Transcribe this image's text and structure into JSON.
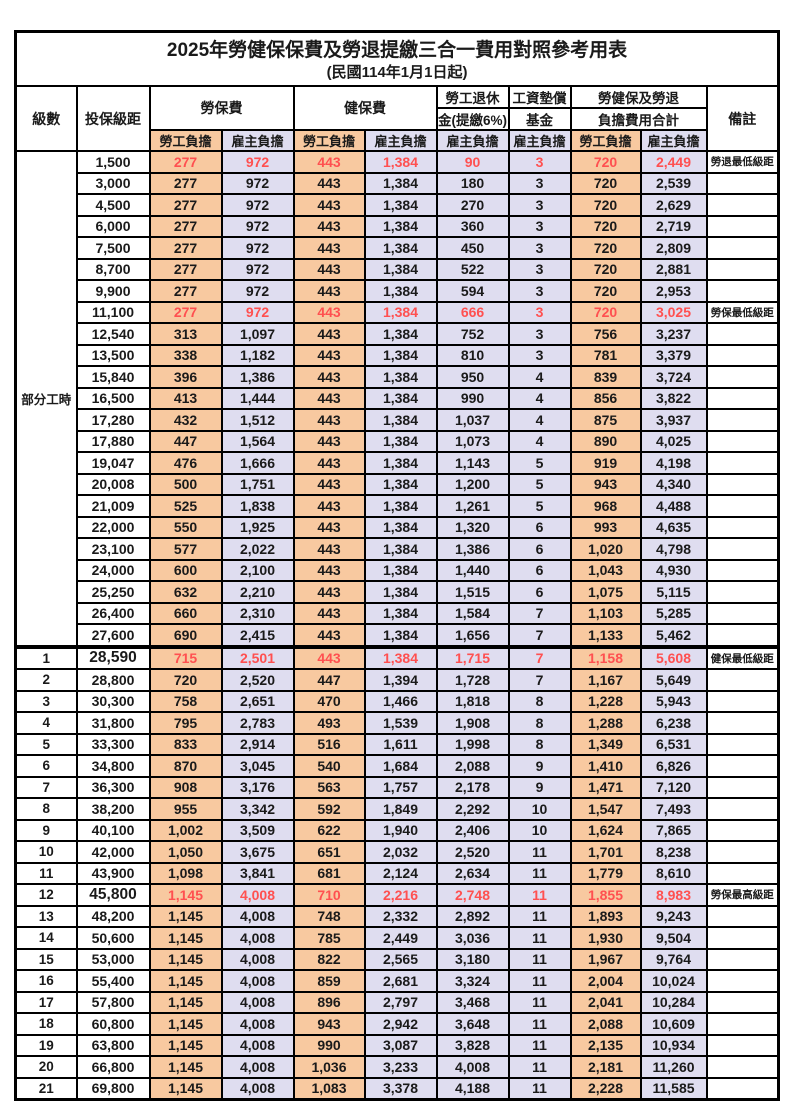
{
  "title": "2025年勞健保保費及勞退提繳三合一費用對照參考用表",
  "subtitle": "(民國114年1月1日起)",
  "colors": {
    "employee_column_bg": "#f8c9a0",
    "employer_column_bg": "#dfddf0",
    "highlight_red": "#ff5050",
    "border": "#000000"
  },
  "header": {
    "level": "級數",
    "bracket": "投保級距",
    "labor_fee": "勞保費",
    "health_fee": "健保費",
    "pension_line1": "勞工退休",
    "pension_line2": "金(提繳6%)",
    "wage_fund_line1": "工資墊償",
    "wage_fund_line2": "基金",
    "total_line1": "勞健保及勞退",
    "total_line2": "負擔費用合計",
    "remark": "備註",
    "employee": "勞工負擔",
    "employer": "雇主負擔"
  },
  "part_time_label": "部分工時",
  "value_columns": [
    "labor_employee",
    "labor_employer",
    "health_employee",
    "health_employer",
    "pension_employer",
    "wage_fund_employer",
    "total_employee",
    "total_employer"
  ],
  "rows": [
    {
      "level": "",
      "bracket": "1,500",
      "values": [
        "277",
        "972",
        "443",
        "1,384",
        "90",
        "3",
        "720",
        "2,449"
      ],
      "note": "勞退最低級距",
      "red": true,
      "bold": false
    },
    {
      "level": "",
      "bracket": "3,000",
      "values": [
        "277",
        "972",
        "443",
        "1,384",
        "180",
        "3",
        "720",
        "2,539"
      ],
      "note": "",
      "red": false,
      "bold": false
    },
    {
      "level": "",
      "bracket": "4,500",
      "values": [
        "277",
        "972",
        "443",
        "1,384",
        "270",
        "3",
        "720",
        "2,629"
      ],
      "note": "",
      "red": false,
      "bold": false
    },
    {
      "level": "",
      "bracket": "6,000",
      "values": [
        "277",
        "972",
        "443",
        "1,384",
        "360",
        "3",
        "720",
        "2,719"
      ],
      "note": "",
      "red": false,
      "bold": false
    },
    {
      "level": "",
      "bracket": "7,500",
      "values": [
        "277",
        "972",
        "443",
        "1,384",
        "450",
        "3",
        "720",
        "2,809"
      ],
      "note": "",
      "red": false,
      "bold": false
    },
    {
      "level": "",
      "bracket": "8,700",
      "values": [
        "277",
        "972",
        "443",
        "1,384",
        "522",
        "3",
        "720",
        "2,881"
      ],
      "note": "",
      "red": false,
      "bold": false
    },
    {
      "level": "",
      "bracket": "9,900",
      "values": [
        "277",
        "972",
        "443",
        "1,384",
        "594",
        "3",
        "720",
        "2,953"
      ],
      "note": "",
      "red": false,
      "bold": false
    },
    {
      "level": "",
      "bracket": "11,100",
      "values": [
        "277",
        "972",
        "443",
        "1,384",
        "666",
        "3",
        "720",
        "3,025"
      ],
      "note": "勞保最低級距",
      "red": true,
      "bold": false
    },
    {
      "level": "",
      "bracket": "12,540",
      "values": [
        "313",
        "1,097",
        "443",
        "1,384",
        "752",
        "3",
        "756",
        "3,237"
      ],
      "note": "",
      "red": false,
      "bold": false
    },
    {
      "level": "",
      "bracket": "13,500",
      "values": [
        "338",
        "1,182",
        "443",
        "1,384",
        "810",
        "3",
        "781",
        "3,379"
      ],
      "note": "",
      "red": false,
      "bold": false
    },
    {
      "level": "",
      "bracket": "15,840",
      "values": [
        "396",
        "1,386",
        "443",
        "1,384",
        "950",
        "4",
        "839",
        "3,724"
      ],
      "note": "",
      "red": false,
      "bold": false
    },
    {
      "level": "",
      "bracket": "16,500",
      "values": [
        "413",
        "1,444",
        "443",
        "1,384",
        "990",
        "4",
        "856",
        "3,822"
      ],
      "note": "",
      "red": false,
      "bold": false
    },
    {
      "level": "",
      "bracket": "17,280",
      "values": [
        "432",
        "1,512",
        "443",
        "1,384",
        "1,037",
        "4",
        "875",
        "3,937"
      ],
      "note": "",
      "red": false,
      "bold": false
    },
    {
      "level": "",
      "bracket": "17,880",
      "values": [
        "447",
        "1,564",
        "443",
        "1,384",
        "1,073",
        "4",
        "890",
        "4,025"
      ],
      "note": "",
      "red": false,
      "bold": false
    },
    {
      "level": "",
      "bracket": "19,047",
      "values": [
        "476",
        "1,666",
        "443",
        "1,384",
        "1,143",
        "5",
        "919",
        "4,198"
      ],
      "note": "",
      "red": false,
      "bold": false
    },
    {
      "level": "",
      "bracket": "20,008",
      "values": [
        "500",
        "1,751",
        "443",
        "1,384",
        "1,200",
        "5",
        "943",
        "4,340"
      ],
      "note": "",
      "red": false,
      "bold": false
    },
    {
      "level": "",
      "bracket": "21,009",
      "values": [
        "525",
        "1,838",
        "443",
        "1,384",
        "1,261",
        "5",
        "968",
        "4,488"
      ],
      "note": "",
      "red": false,
      "bold": false
    },
    {
      "level": "",
      "bracket": "22,000",
      "values": [
        "550",
        "1,925",
        "443",
        "1,384",
        "1,320",
        "6",
        "993",
        "4,635"
      ],
      "note": "",
      "red": false,
      "bold": false
    },
    {
      "level": "",
      "bracket": "23,100",
      "values": [
        "577",
        "2,022",
        "443",
        "1,384",
        "1,386",
        "6",
        "1,020",
        "4,798"
      ],
      "note": "",
      "red": false,
      "bold": false
    },
    {
      "level": "",
      "bracket": "24,000",
      "values": [
        "600",
        "2,100",
        "443",
        "1,384",
        "1,440",
        "6",
        "1,043",
        "4,930"
      ],
      "note": "",
      "red": false,
      "bold": false
    },
    {
      "level": "",
      "bracket": "25,250",
      "values": [
        "632",
        "2,210",
        "443",
        "1,384",
        "1,515",
        "6",
        "1,075",
        "5,115"
      ],
      "note": "",
      "red": false,
      "bold": false
    },
    {
      "level": "",
      "bracket": "26,400",
      "values": [
        "660",
        "2,310",
        "443",
        "1,384",
        "1,584",
        "7",
        "1,103",
        "5,285"
      ],
      "note": "",
      "red": false,
      "bold": false
    },
    {
      "level": "",
      "bracket": "27,600",
      "values": [
        "690",
        "2,415",
        "443",
        "1,384",
        "1,656",
        "7",
        "1,133",
        "5,462"
      ],
      "note": "",
      "red": false,
      "bold": false
    },
    {
      "level": "1",
      "bracket": "28,590",
      "values": [
        "715",
        "2,501",
        "443",
        "1,384",
        "1,715",
        "7",
        "1,158",
        "5,608"
      ],
      "note": "健保最低級距",
      "red": true,
      "bold": true
    },
    {
      "level": "2",
      "bracket": "28,800",
      "values": [
        "720",
        "2,520",
        "447",
        "1,394",
        "1,728",
        "7",
        "1,167",
        "5,649"
      ],
      "note": "",
      "red": false,
      "bold": false
    },
    {
      "level": "3",
      "bracket": "30,300",
      "values": [
        "758",
        "2,651",
        "470",
        "1,466",
        "1,818",
        "8",
        "1,228",
        "5,943"
      ],
      "note": "",
      "red": false,
      "bold": false
    },
    {
      "level": "4",
      "bracket": "31,800",
      "values": [
        "795",
        "2,783",
        "493",
        "1,539",
        "1,908",
        "8",
        "1,288",
        "6,238"
      ],
      "note": "",
      "red": false,
      "bold": false
    },
    {
      "level": "5",
      "bracket": "33,300",
      "values": [
        "833",
        "2,914",
        "516",
        "1,611",
        "1,998",
        "8",
        "1,349",
        "6,531"
      ],
      "note": "",
      "red": false,
      "bold": false
    },
    {
      "level": "6",
      "bracket": "34,800",
      "values": [
        "870",
        "3,045",
        "540",
        "1,684",
        "2,088",
        "9",
        "1,410",
        "6,826"
      ],
      "note": "",
      "red": false,
      "bold": false
    },
    {
      "level": "7",
      "bracket": "36,300",
      "values": [
        "908",
        "3,176",
        "563",
        "1,757",
        "2,178",
        "9",
        "1,471",
        "7,120"
      ],
      "note": "",
      "red": false,
      "bold": false
    },
    {
      "level": "8",
      "bracket": "38,200",
      "values": [
        "955",
        "3,342",
        "592",
        "1,849",
        "2,292",
        "10",
        "1,547",
        "7,493"
      ],
      "note": "",
      "red": false,
      "bold": false
    },
    {
      "level": "9",
      "bracket": "40,100",
      "values": [
        "1,002",
        "3,509",
        "622",
        "1,940",
        "2,406",
        "10",
        "1,624",
        "7,865"
      ],
      "note": "",
      "red": false,
      "bold": false
    },
    {
      "level": "10",
      "bracket": "42,000",
      "values": [
        "1,050",
        "3,675",
        "651",
        "2,032",
        "2,520",
        "11",
        "1,701",
        "8,238"
      ],
      "note": "",
      "red": false,
      "bold": false
    },
    {
      "level": "11",
      "bracket": "43,900",
      "values": [
        "1,098",
        "3,841",
        "681",
        "2,124",
        "2,634",
        "11",
        "1,779",
        "8,610"
      ],
      "note": "",
      "red": false,
      "bold": false
    },
    {
      "level": "12",
      "bracket": "45,800",
      "values": [
        "1,145",
        "4,008",
        "710",
        "2,216",
        "2,748",
        "11",
        "1,855",
        "8,983"
      ],
      "note": "勞保最高級距",
      "red": true,
      "bold": true
    },
    {
      "level": "13",
      "bracket": "48,200",
      "values": [
        "1,145",
        "4,008",
        "748",
        "2,332",
        "2,892",
        "11",
        "1,893",
        "9,243"
      ],
      "note": "",
      "red": false,
      "bold": false
    },
    {
      "level": "14",
      "bracket": "50,600",
      "values": [
        "1,145",
        "4,008",
        "785",
        "2,449",
        "3,036",
        "11",
        "1,930",
        "9,504"
      ],
      "note": "",
      "red": false,
      "bold": false
    },
    {
      "level": "15",
      "bracket": "53,000",
      "values": [
        "1,145",
        "4,008",
        "822",
        "2,565",
        "3,180",
        "11",
        "1,967",
        "9,764"
      ],
      "note": "",
      "red": false,
      "bold": false
    },
    {
      "level": "16",
      "bracket": "55,400",
      "values": [
        "1,145",
        "4,008",
        "859",
        "2,681",
        "3,324",
        "11",
        "2,004",
        "10,024"
      ],
      "note": "",
      "red": false,
      "bold": false
    },
    {
      "level": "17",
      "bracket": "57,800",
      "values": [
        "1,145",
        "4,008",
        "896",
        "2,797",
        "3,468",
        "11",
        "2,041",
        "10,284"
      ],
      "note": "",
      "red": false,
      "bold": false
    },
    {
      "level": "18",
      "bracket": "60,800",
      "values": [
        "1,145",
        "4,008",
        "943",
        "2,942",
        "3,648",
        "11",
        "2,088",
        "10,609"
      ],
      "note": "",
      "red": false,
      "bold": false
    },
    {
      "level": "19",
      "bracket": "63,800",
      "values": [
        "1,145",
        "4,008",
        "990",
        "3,087",
        "3,828",
        "11",
        "2,135",
        "10,934"
      ],
      "note": "",
      "red": false,
      "bold": false
    },
    {
      "level": "20",
      "bracket": "66,800",
      "values": [
        "1,145",
        "4,008",
        "1,036",
        "3,233",
        "4,008",
        "11",
        "2,181",
        "11,260"
      ],
      "note": "",
      "red": false,
      "bold": false
    },
    {
      "level": "21",
      "bracket": "69,800",
      "values": [
        "1,145",
        "4,008",
        "1,083",
        "3,378",
        "4,188",
        "11",
        "2,228",
        "11,585"
      ],
      "note": "",
      "red": false,
      "bold": false
    }
  ]
}
